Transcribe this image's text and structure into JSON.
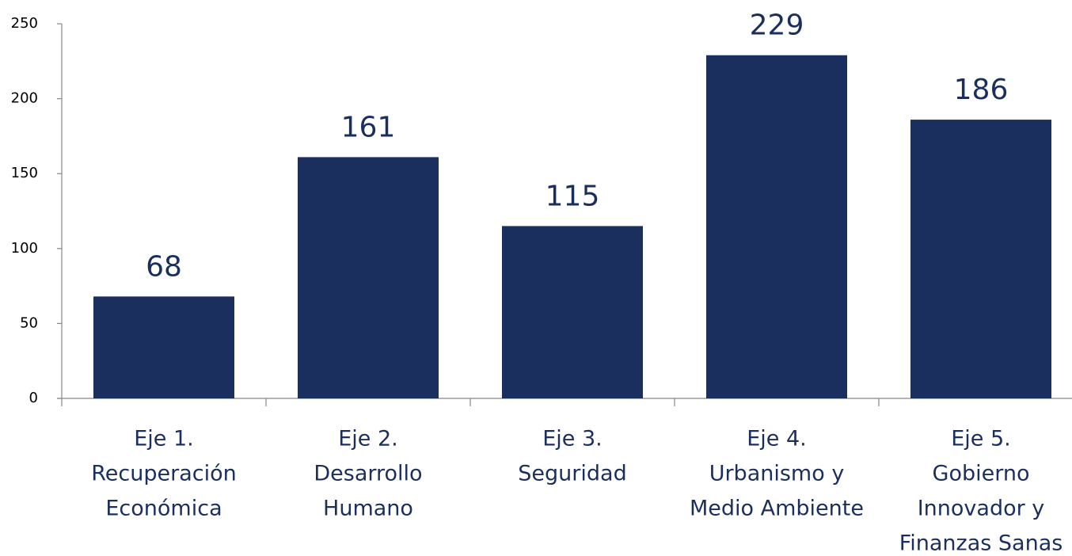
{
  "chart_data": {
    "type": "bar",
    "categories": [
      [
        "Eje 1.",
        "Recuperación",
        "Económica"
      ],
      [
        "Eje 2.",
        "Desarrollo",
        "Humano"
      ],
      [
        "Eje 3.",
        "Seguridad"
      ],
      [
        "Eje 4.",
        "Urbanismo y",
        "Medio Ambiente"
      ],
      [
        "Eje 5.",
        "Gobierno",
        "Innovador y",
        "Finanzas Sanas"
      ]
    ],
    "values": [
      68,
      161,
      115,
      229,
      186
    ],
    "color": "#1b2f5e",
    "ylim": [
      0,
      250
    ],
    "yticks": [
      0,
      50,
      100,
      150,
      200,
      250
    ],
    "grid": false
  }
}
